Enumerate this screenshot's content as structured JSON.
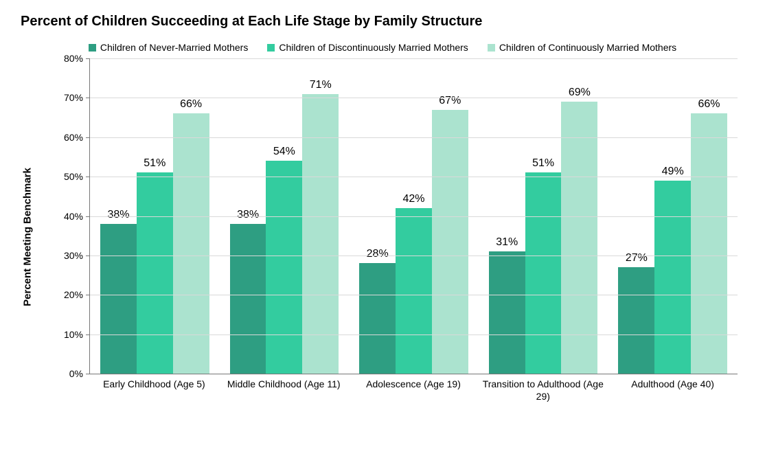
{
  "chart": {
    "type": "grouped-bar",
    "title": "Percent of Children Succeeding at Each Life Stage by Family Structure",
    "title_fontsize": 20,
    "legend_fontsize": 14,
    "axis_label_fontsize": 15,
    "tick_fontsize": 14,
    "bar_label_fontsize": 16,
    "background_color": "#ffffff",
    "grid_color": "#d9d9d9",
    "axis_color": "#777777",
    "text_color": "#000000",
    "y_axis": {
      "label": "Percent Meeting Benchmark",
      "min": 0,
      "max": 80,
      "tick_step": 10,
      "ticks": [
        "0%",
        "10%",
        "20%",
        "30%",
        "40%",
        "50%",
        "60%",
        "70%",
        "80%"
      ]
    },
    "series": [
      {
        "name": "Children of Never-Married Mothers",
        "color": "#2e9e82"
      },
      {
        "name": "Children of Discontinuously Married Mothers",
        "color": "#33cc9f"
      },
      {
        "name": "Children of Continuously Married Mothers",
        "color": "#abe3cf"
      }
    ],
    "categories": [
      "Early Childhood (Age 5)",
      "Middle Childhood (Age 11)",
      "Adolescence (Age 19)",
      "Transition to Adulthood (Age 29)",
      "Adulthood (Age 40)"
    ],
    "values": [
      [
        38,
        51,
        66
      ],
      [
        38,
        54,
        71
      ],
      [
        28,
        42,
        67
      ],
      [
        31,
        51,
        69
      ],
      [
        27,
        49,
        66
      ]
    ],
    "bar_group_width": 0.84
  }
}
